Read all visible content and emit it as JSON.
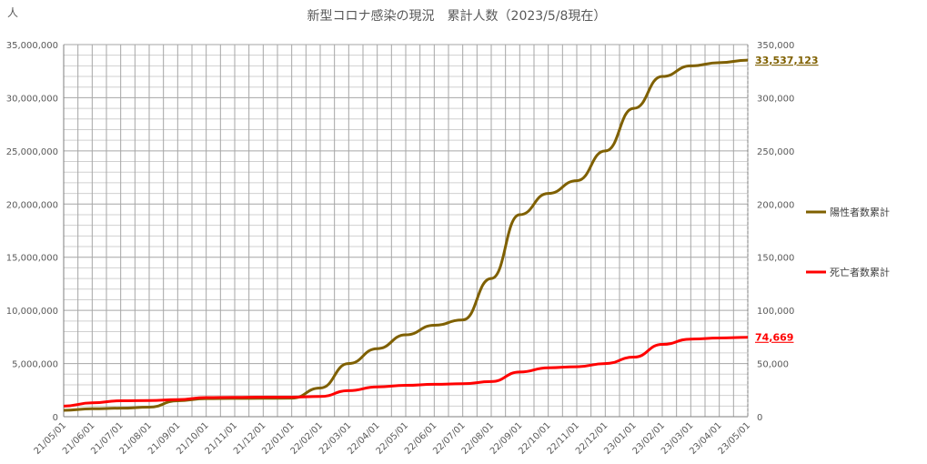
{
  "chart_data": {
    "type": "line",
    "title": "新型コロナ感染の現況　累計人数（2023/5/8現在）",
    "ylabel": "人",
    "ylim": [
      0,
      35000000
    ],
    "y2lim": [
      0,
      350000
    ],
    "yticks": [
      "0",
      "5,000,000",
      "10,000,000",
      "15,000,000",
      "20,000,000",
      "25,000,000",
      "30,000,000",
      "35,000,000"
    ],
    "y2ticks": [
      "0",
      "50,000",
      "100,000",
      "150,000",
      "200,000",
      "250,000",
      "300,000",
      "350,000"
    ],
    "x": [
      "21/05/01",
      "21/06/01",
      "21/07/01",
      "21/08/01",
      "21/09/01",
      "21/10/01",
      "21/11/01",
      "21/12/01",
      "22/01/01",
      "22/02/01",
      "22/03/01",
      "22/04/01",
      "22/05/01",
      "22/06/01",
      "22/07/01",
      "22/08/01",
      "22/09/01",
      "22/10/01",
      "22/11/01",
      "22/12/01",
      "23/01/01",
      "23/02/01",
      "23/03/01",
      "23/04/01",
      "23/05/01"
    ],
    "legend_position": "right",
    "grid": true,
    "series": [
      {
        "name": "陽性者数累計",
        "axis": "left",
        "color": "#7f6000",
        "end_label": "33,537,123",
        "values": [
          600000,
          750000,
          800000,
          900000,
          1500000,
          1700000,
          1720000,
          1730000,
          1740000,
          2700000,
          5000000,
          6400000,
          7700000,
          8600000,
          9100000,
          13000000,
          19000000,
          21000000,
          22200000,
          25000000,
          29000000,
          32000000,
          33000000,
          33300000,
          33537123
        ]
      },
      {
        "name": "死亡者数累計",
        "axis": "right",
        "color": "#ff0000",
        "end_label": "74,669",
        "values": [
          10000,
          13000,
          15000,
          15200,
          16000,
          18000,
          18200,
          18400,
          18400,
          19000,
          24500,
          28000,
          29500,
          30500,
          31000,
          33000,
          42000,
          46000,
          47000,
          50000,
          56000,
          68000,
          73000,
          74000,
          74669
        ]
      }
    ]
  }
}
